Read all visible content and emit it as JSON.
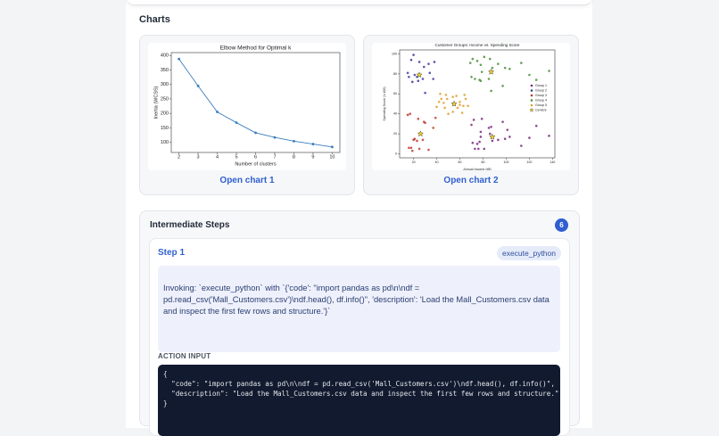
{
  "header": {
    "title": "Charts"
  },
  "charts": [
    {
      "link": "Open chart 1",
      "chart_data": {
        "type": "line",
        "title": "Elbow Method for Optimal k",
        "x_label": "Number of clusters",
        "y_label": "Inertia (WCSS)",
        "x": [
          2,
          3,
          4,
          5,
          6,
          7,
          8,
          9,
          10
        ],
        "values": [
          388,
          295,
          205,
          168,
          133,
          117,
          104,
          94,
          84
        ],
        "color": "#3a7ebf",
        "xlim": [
          1.6,
          10.4
        ],
        "ylim": [
          65,
          410
        ],
        "xticks": [
          2,
          3,
          4,
          5,
          6,
          7,
          8,
          9,
          10
        ],
        "yticks": [
          100,
          150,
          200,
          250,
          300,
          350,
          400
        ]
      }
    },
    {
      "link": "Open chart 2",
      "chart_data": {
        "type": "scatter",
        "title": "Customer Groups: Income vs. Spending Score",
        "x_label": "Annual Income (k$)",
        "y_label": "Spending Score (1-100)",
        "xlim": [
          8,
          142
        ],
        "ylim": [
          -4,
          104
        ],
        "xticks": [
          20,
          40,
          60,
          80,
          100,
          120,
          140
        ],
        "yticks": [
          0,
          20,
          40,
          60,
          80,
          100
        ],
        "legend": "right",
        "series": [
          {
            "name": "Group 1",
            "color": "#7b2a7b",
            "x": [
              70,
              71,
              72,
              73,
              75,
              76,
              77,
              78,
              78,
              79,
              81,
              85,
              86,
              87,
              88,
              93,
              97,
              99,
              101,
              103,
              113,
              120,
              126,
              137
            ],
            "y": [
              29,
              11,
              34,
              5,
              10,
              5,
              12,
              22,
              17,
              35,
              5,
              26,
              20,
              27,
              13,
              14,
              32,
              15,
              24,
              17,
              8,
              16,
              28,
              18
            ]
          },
          {
            "name": "Group 2",
            "color": "#3d3a9c",
            "x": [
              15,
              16,
              18,
              19,
              20,
              21,
              23,
              24,
              25,
              28,
              29,
              30,
              33,
              34,
              37,
              38
            ],
            "y": [
              81,
              77,
              94,
              72,
              99,
              79,
              77,
              73,
              92,
              75,
              87,
              61,
              90,
              81,
              75,
              92
            ]
          },
          {
            "name": "Group 3",
            "color": "#c0392b",
            "x": [
              15,
              16,
              17,
              18,
              19,
              20,
              21,
              23,
              24,
              25,
              28,
              29,
              30,
              33,
              37,
              39
            ],
            "y": [
              39,
              6,
              40,
              6,
              3,
              14,
              15,
              13,
              35,
              5,
              14,
              32,
              31,
              4,
              26,
              36
            ]
          },
          {
            "name": "Group 4",
            "color": "#4e8f3a",
            "x": [
              69,
              70,
              71,
              73,
              75,
              77,
              78,
              78,
              79,
              81,
              85,
              86,
              87,
              88,
              93,
              97,
              99,
              103,
              113,
              120,
              126,
              137
            ],
            "y": [
              91,
              77,
              95,
              75,
              93,
              74,
              89,
              73,
              82,
              97,
              75,
              95,
              63,
              86,
              90,
              68,
              86,
              85,
              91,
              79,
              74,
              83
            ]
          },
          {
            "name": "Group 5",
            "color": "#e0a030",
            "x": [
              40,
              42,
              43,
              44,
              46,
              47,
              48,
              49,
              50,
              54,
              54,
              57,
              58,
              60,
              60,
              62,
              63,
              64,
              65,
              67
            ],
            "y": [
              47,
              52,
              60,
              55,
              51,
              46,
              59,
              55,
              40,
              42,
              57,
              58,
              46,
              52,
              49,
              41,
              48,
              59,
              55,
              48
            ]
          },
          {
            "name": "Centers",
            "color": "#f2d024",
            "marker": "star",
            "x": [
              26,
              25,
              55,
              87,
              88
            ],
            "y": [
              20,
              79,
              50,
              82,
              17
            ]
          }
        ]
      }
    }
  ],
  "steps_panel": {
    "title": "Intermediate Steps",
    "count": 6,
    "steps": [
      {
        "title": "Step 1",
        "tool": "execute_python",
        "invocation": "Invoking: `execute_python` with `{'code': \"import pandas as pd\\n\\ndf = pd.read_csv('Mall_Customers.csv')\\ndf.head(), df.info()\", 'description': 'Load the Mall_Customers.csv data and inspect the first few rows and structure.'}`",
        "action_input_label": "ACTION INPUT",
        "action_input": [
          "{",
          "  \"code\": \"import pandas as pd\\n\\ndf = pd.read_csv('Mall_Customers.csv')\\ndf.head(), df.info()\",",
          "  \"description\": \"Load the Mall_Customers.csv data and inspect the first few rows and structure.\"",
          "}"
        ]
      }
    ]
  }
}
